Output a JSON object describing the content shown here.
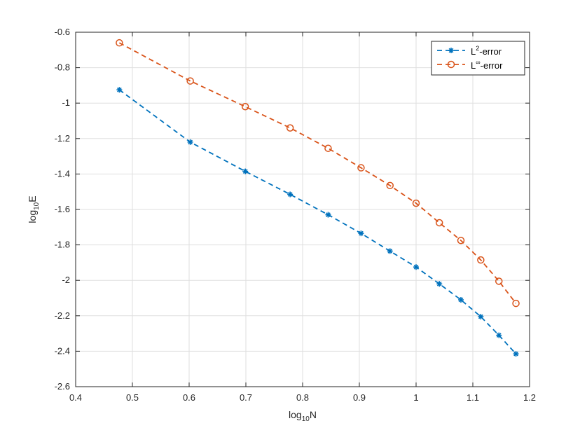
{
  "chart_data": {
    "type": "line",
    "xlabel": {
      "base": "log",
      "sub": "10",
      "tail": "N"
    },
    "ylabel": {
      "base": "log",
      "sub": "10",
      "tail": "E"
    },
    "xlim": [
      0.4,
      1.2
    ],
    "ylim": [
      -2.6,
      -0.6
    ],
    "xticks": [
      0.4,
      0.5,
      0.6,
      0.7,
      0.8,
      0.9,
      1,
      1.1,
      1.2
    ],
    "xtick_labels": [
      "0.4",
      "0.5",
      "0.6",
      "0.7",
      "0.8",
      "0.9",
      "1",
      "1.1",
      "1.2"
    ],
    "yticks": [
      -2.6,
      -2.4,
      -2.2,
      -2,
      -1.8,
      -1.6,
      -1.4,
      -1.2,
      -1,
      -0.8,
      -0.6
    ],
    "ytick_labels": [
      "-2.6",
      "-2.4",
      "-2.2",
      "-2",
      "-1.8",
      "-1.6",
      "-1.4",
      "-1.2",
      "-1",
      "-0.8",
      "-0.6"
    ],
    "grid": true,
    "legend_position": "top-right",
    "x": [
      0.477,
      0.602,
      0.699,
      0.778,
      0.845,
      0.903,
      0.954,
      1.0,
      1.041,
      1.079,
      1.114,
      1.146,
      1.176
    ],
    "series": [
      {
        "name": {
          "base": "L",
          "sup": "2",
          "tail": "-error"
        },
        "color": "#0072BD",
        "marker": "asterisk",
        "values": [
          -0.925,
          -1.22,
          -1.385,
          -1.515,
          -1.63,
          -1.735,
          -1.835,
          -1.925,
          -2.02,
          -2.11,
          -2.205,
          -2.31,
          -2.415
        ]
      },
      {
        "name": {
          "base": "L",
          "sup": "∞",
          "tail": "-error"
        },
        "color": "#D95319",
        "marker": "circle",
        "values": [
          -0.66,
          -0.875,
          -1.02,
          -1.14,
          -1.255,
          -1.365,
          -1.465,
          -1.565,
          -1.675,
          -1.775,
          -1.885,
          -2.005,
          -2.13
        ]
      }
    ]
  }
}
